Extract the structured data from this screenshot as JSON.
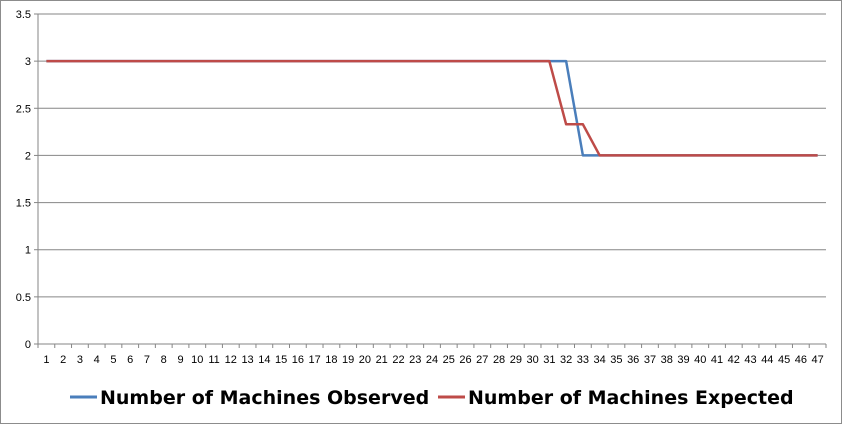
{
  "chart_data": {
    "type": "line",
    "x": [
      1,
      2,
      3,
      4,
      5,
      6,
      7,
      8,
      9,
      10,
      11,
      12,
      13,
      14,
      15,
      16,
      17,
      18,
      19,
      20,
      21,
      22,
      23,
      24,
      25,
      26,
      27,
      28,
      29,
      30,
      31,
      32,
      33,
      34,
      35,
      36,
      37,
      38,
      39,
      40,
      41,
      42,
      43,
      44,
      45,
      46,
      47
    ],
    "ylim": [
      0,
      3.5
    ],
    "yticks": [
      0,
      0.5,
      1,
      1.5,
      2,
      2.5,
      3,
      3.5
    ],
    "grid": true,
    "legend_position": "bottom",
    "series": [
      {
        "name": "Number of Machines Observed",
        "color": "#4a7ebb",
        "values": [
          3,
          3,
          3,
          3,
          3,
          3,
          3,
          3,
          3,
          3,
          3,
          3,
          3,
          3,
          3,
          3,
          3,
          3,
          3,
          3,
          3,
          3,
          3,
          3,
          3,
          3,
          3,
          3,
          3,
          3,
          3,
          3,
          2,
          2,
          2,
          2,
          2,
          2,
          2,
          2,
          2,
          2,
          2,
          2,
          2,
          2,
          2
        ]
      },
      {
        "name": "Number of Machines Expected",
        "color": "#be4b48",
        "values": [
          3,
          3,
          3,
          3,
          3,
          3,
          3,
          3,
          3,
          3,
          3,
          3,
          3,
          3,
          3,
          3,
          3,
          3,
          3,
          3,
          3,
          3,
          3,
          3,
          3,
          3,
          3,
          3,
          3,
          3,
          3,
          2.33,
          2.33,
          2,
          2,
          2,
          2,
          2,
          2,
          2,
          2,
          2,
          2,
          2,
          2,
          2,
          2
        ]
      }
    ]
  }
}
